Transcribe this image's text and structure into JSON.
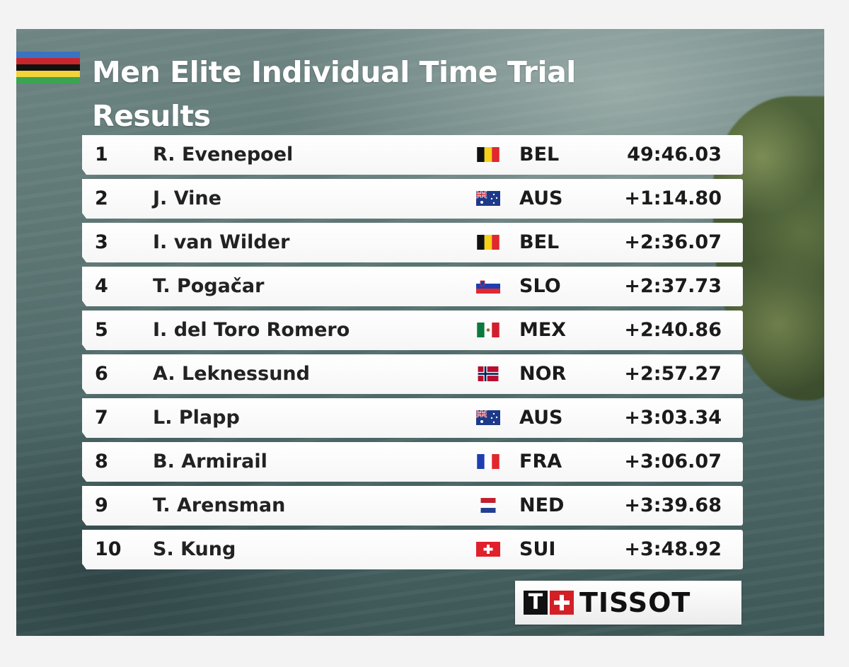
{
  "header": {
    "title_line1": "Men Elite Individual Time Trial",
    "title_line2": "Results",
    "rainbow_colors": [
      "#3a73c4",
      "#c7262d",
      "#111111",
      "#f2d33a",
      "#3aa452"
    ]
  },
  "results": [
    {
      "rank": "1",
      "name": "R. Evenepoel",
      "flag": "belgium-flag",
      "nation": "BEL",
      "time": "49:46.03"
    },
    {
      "rank": "2",
      "name": "J. Vine",
      "flag": "australia-flag",
      "nation": "AUS",
      "time": "+1:14.80"
    },
    {
      "rank": "3",
      "name": "I. van Wilder",
      "flag": "belgium-flag",
      "nation": "BEL",
      "time": "+2:36.07"
    },
    {
      "rank": "4",
      "name": "T. Pogačar",
      "flag": "slovenia-flag",
      "nation": "SLO",
      "time": "+2:37.73"
    },
    {
      "rank": "5",
      "name": "I. del Toro Romero",
      "flag": "mexico-flag",
      "nation": "MEX",
      "time": "+2:40.86"
    },
    {
      "rank": "6",
      "name": "A. Leknessund",
      "flag": "norway-flag",
      "nation": "NOR",
      "time": "+2:57.27"
    },
    {
      "rank": "7",
      "name": "L. Plapp",
      "flag": "australia-flag",
      "nation": "AUS",
      "time": "+3:03.34"
    },
    {
      "rank": "8",
      "name": "B. Armirail",
      "flag": "france-flag",
      "nation": "FRA",
      "time": "+3:06.07"
    },
    {
      "rank": "9",
      "name": "T. Arensman",
      "flag": "netherlands-flag",
      "nation": "NED",
      "time": "+3:39.68"
    },
    {
      "rank": "10",
      "name": "S. Kung",
      "flag": "switzerland-flag",
      "nation": "SUI",
      "time": "+3:48.92"
    }
  ],
  "sponsor": {
    "name": "TISSOT",
    "mark_letter": "T"
  }
}
